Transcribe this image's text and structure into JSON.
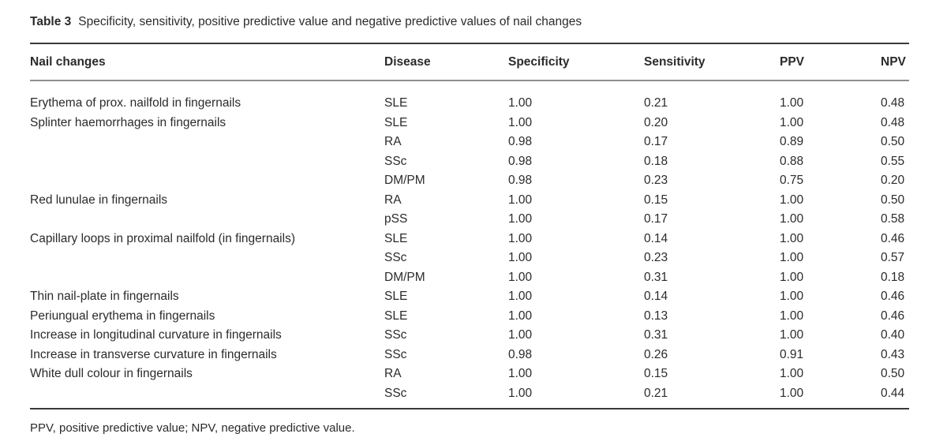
{
  "table": {
    "label": "Table 3",
    "caption": "Specificity, sensitivity, positive predictive value and negative predictive values of nail changes",
    "columns": [
      "Nail changes",
      "Disease",
      "Specificity",
      "Sensitivity",
      "PPV",
      "NPV"
    ],
    "rows": [
      {
        "nail_change": "Erythema of prox. nailfold in fingernails",
        "disease": "SLE",
        "specificity": "1.00",
        "sensitivity": "0.21",
        "ppv": "1.00",
        "npv": "0.48"
      },
      {
        "nail_change": "Splinter haemorrhages in fingernails",
        "disease": "SLE",
        "specificity": "1.00",
        "sensitivity": "0.20",
        "ppv": "1.00",
        "npv": "0.48"
      },
      {
        "nail_change": "",
        "disease": "RA",
        "specificity": "0.98",
        "sensitivity": "0.17",
        "ppv": "0.89",
        "npv": "0.50"
      },
      {
        "nail_change": "",
        "disease": "SSc",
        "specificity": "0.98",
        "sensitivity": "0.18",
        "ppv": "0.88",
        "npv": "0.55"
      },
      {
        "nail_change": "",
        "disease": "DM/PM",
        "specificity": "0.98",
        "sensitivity": "0.23",
        "ppv": "0.75",
        "npv": "0.20"
      },
      {
        "nail_change": "Red lunulae in fingernails",
        "disease": "RA",
        "specificity": "1.00",
        "sensitivity": "0.15",
        "ppv": "1.00",
        "npv": "0.50"
      },
      {
        "nail_change": "",
        "disease": "pSS",
        "specificity": "1.00",
        "sensitivity": "0.17",
        "ppv": "1.00",
        "npv": "0.58"
      },
      {
        "nail_change": "Capillary loops in proximal nailfold (in fingernails)",
        "disease": "SLE",
        "specificity": "1.00",
        "sensitivity": "0.14",
        "ppv": "1.00",
        "npv": "0.46"
      },
      {
        "nail_change": "",
        "disease": "SSc",
        "specificity": "1.00",
        "sensitivity": "0.23",
        "ppv": "1.00",
        "npv": "0.57"
      },
      {
        "nail_change": "",
        "disease": "DM/PM",
        "specificity": "1.00",
        "sensitivity": "0.31",
        "ppv": "1.00",
        "npv": "0.18"
      },
      {
        "nail_change": "Thin nail-plate in fingernails",
        "disease": "SLE",
        "specificity": "1.00",
        "sensitivity": "0.14",
        "ppv": "1.00",
        "npv": "0.46"
      },
      {
        "nail_change": "Periungual erythema in fingernails",
        "disease": "SLE",
        "specificity": "1.00",
        "sensitivity": "0.13",
        "ppv": "1.00",
        "npv": "0.46"
      },
      {
        "nail_change": "Increase in longitudinal curvature in fingernails",
        "disease": "SSc",
        "specificity": "1.00",
        "sensitivity": "0.31",
        "ppv": "1.00",
        "npv": "0.40"
      },
      {
        "nail_change": "Increase in transverse curvature in fingernails",
        "disease": "SSc",
        "specificity": "0.98",
        "sensitivity": "0.26",
        "ppv": "0.91",
        "npv": "0.43"
      },
      {
        "nail_change": "White dull colour in fingernails",
        "disease": "RA",
        "specificity": "1.00",
        "sensitivity": "0.15",
        "ppv": "1.00",
        "npv": "0.50"
      },
      {
        "nail_change": "",
        "disease": "SSc",
        "specificity": "1.00",
        "sensitivity": "0.21",
        "ppv": "1.00",
        "npv": "0.44"
      }
    ],
    "footnote": "PPV, positive predictive value; NPV, negative predictive value."
  },
  "colors": {
    "background": "#ffffff",
    "text": "#2b2b2b",
    "rule_heavy": "#3a3a3a",
    "rule_light": "#8f8f8f"
  }
}
